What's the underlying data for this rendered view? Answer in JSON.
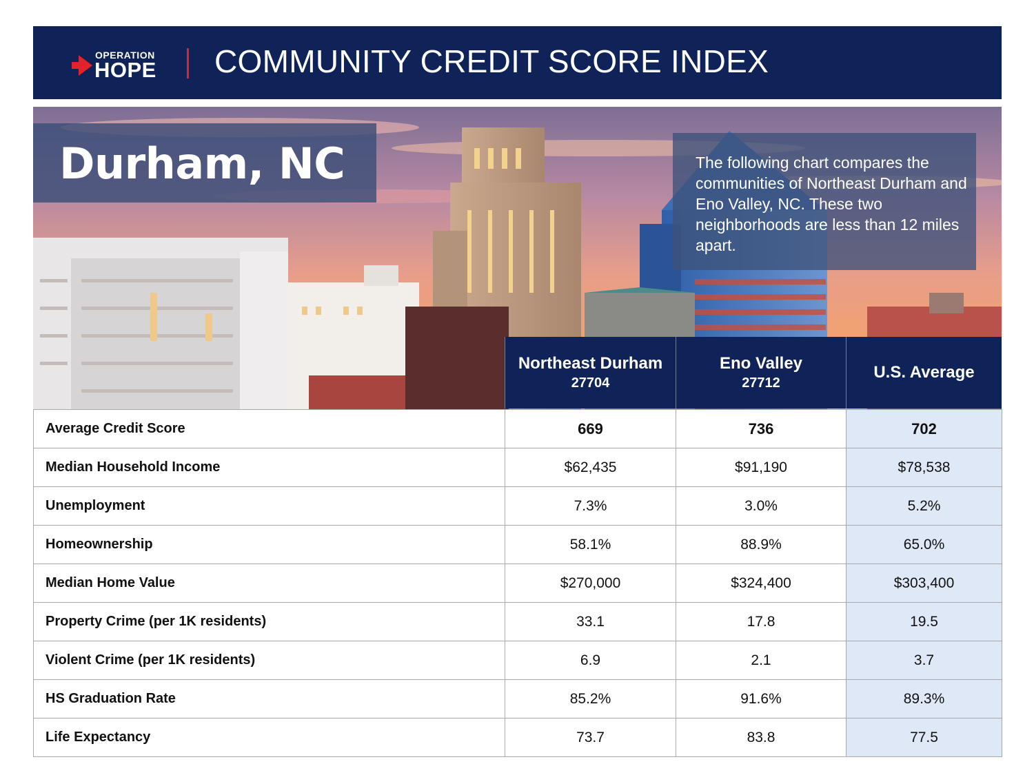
{
  "header": {
    "logo_top": "OPERATION",
    "logo_main": "HOPE",
    "title": "COMMUNITY CREDIT SCORE INDEX",
    "colors": {
      "navy": "#0f2358",
      "red": "#e2232b"
    }
  },
  "hero": {
    "city": "Durham, NC",
    "description": "The following chart compares the communities of Northeast Durham and Eno Valley, NC. These two neighborhoods are less than 12 miles apart."
  },
  "table": {
    "columns": [
      {
        "name": "Northeast Durham",
        "zip": "27704"
      },
      {
        "name": "Eno Valley",
        "zip": "27712"
      },
      {
        "name": "U.S. Average",
        "zip": ""
      }
    ],
    "rows": [
      {
        "label": "Average Credit Score",
        "values": [
          "669",
          "736",
          "702"
        ]
      },
      {
        "label": "Median Household Income",
        "values": [
          "$62,435",
          "$91,190",
          "$78,538"
        ]
      },
      {
        "label": "Unemployment",
        "values": [
          "7.3%",
          "3.0%",
          "5.2%"
        ]
      },
      {
        "label": "Homeownership",
        "values": [
          "58.1%",
          "88.9%",
          "65.0%"
        ]
      },
      {
        "label": "Median Home Value",
        "values": [
          "$270,000",
          "$324,400",
          "$303,400"
        ]
      },
      {
        "label": "Property Crime (per 1K residents)",
        "values": [
          "33.1",
          "17.8",
          "19.5"
        ]
      },
      {
        "label": "Violent Crime (per 1K residents)",
        "values": [
          "6.9",
          "2.1",
          "3.7"
        ]
      },
      {
        "label": "HS Graduation Rate",
        "values": [
          "85.2%",
          "91.6%",
          "89.3%"
        ]
      },
      {
        "label": "Life Expectancy",
        "values": [
          "73.7",
          "83.8",
          "77.5"
        ]
      }
    ]
  }
}
